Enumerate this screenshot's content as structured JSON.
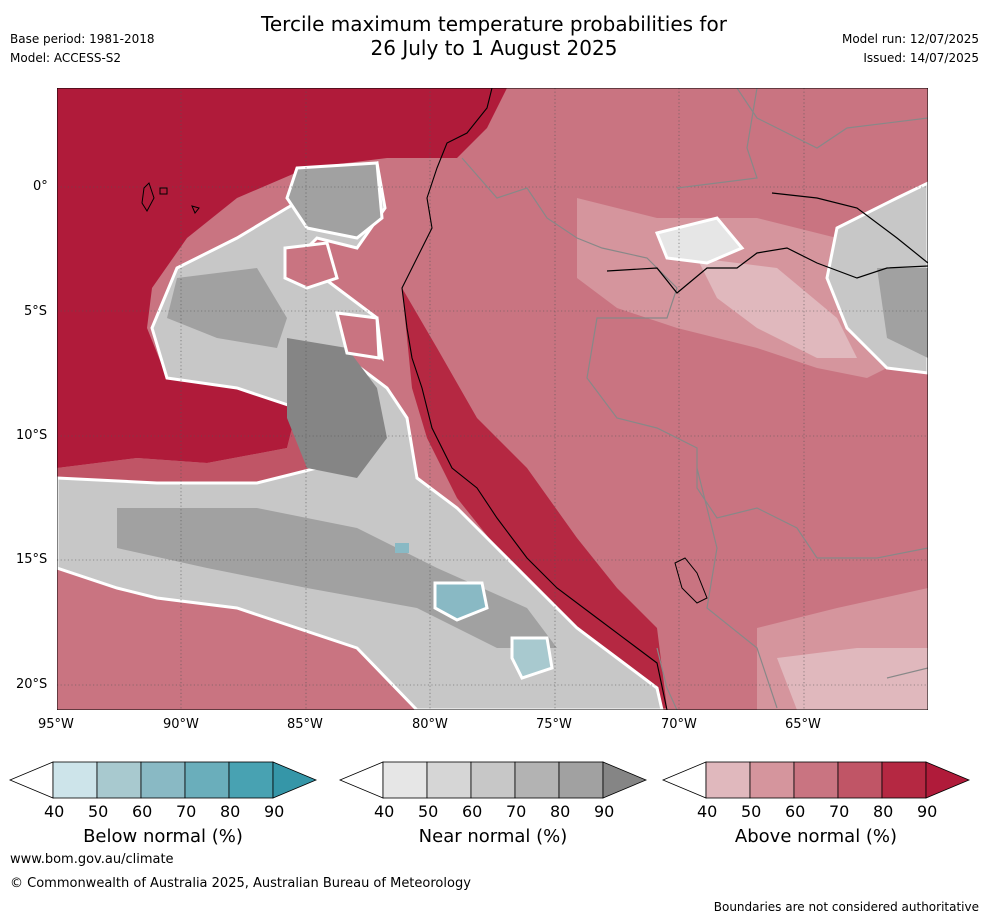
{
  "header": {
    "title_line1": "Tercile maximum temperature probabilities for",
    "title_line2": "26 July to 1 August 2025",
    "base_period": "Base period: 1981-2018",
    "model": "Model: ACCESS-S2",
    "model_run": "Model run: 12/07/2025",
    "issued": "Issued: 14/07/2025"
  },
  "map": {
    "lon_ticks": [
      "95°W",
      "90°W",
      "85°W",
      "80°W",
      "75°W",
      "70°W",
      "65°W"
    ],
    "lat_ticks": [
      "0°",
      "5°S",
      "10°S",
      "15°S",
      "20°S"
    ],
    "colors": {
      "above": [
        "#e0b8bd",
        "#d5959d",
        "#c97481",
        "#c05566",
        "#b52842",
        "#b01b3a"
      ],
      "near": [
        "#e6e6e6",
        "#d6d6d6",
        "#c7c7c7",
        "#b3b3b3",
        "#a1a1a1",
        "#858585"
      ],
      "below": [
        "#cde4ea",
        "#a8c9cf",
        "#89b9c4",
        "#6aaebb",
        "#48a2b2",
        "#3596a8"
      ]
    }
  },
  "legend": [
    {
      "label": "Below normal (%)",
      "ticks": [
        "40",
        "50",
        "60",
        "70",
        "80",
        "90"
      ],
      "colors": [
        "#cde4ea",
        "#a8c9cf",
        "#89b9c4",
        "#6aaebb",
        "#48a2b2",
        "#3596a8"
      ]
    },
    {
      "label": "Near normal (%)",
      "ticks": [
        "40",
        "50",
        "60",
        "70",
        "80",
        "90"
      ],
      "colors": [
        "#e6e6e6",
        "#d6d6d6",
        "#c7c7c7",
        "#b3b3b3",
        "#a1a1a1",
        "#858585"
      ]
    },
    {
      "label": "Above normal (%)",
      "ticks": [
        "40",
        "50",
        "60",
        "70",
        "80",
        "90"
      ],
      "colors": [
        "#e0b8bd",
        "#d5959d",
        "#c97481",
        "#c05566",
        "#b52842",
        "#b01b3a"
      ]
    }
  ],
  "footer": {
    "website": "www.bom.gov.au/climate",
    "copyright": "© Commonwealth of Australia 2025, Australian Bureau of Meteorology",
    "disclaimer": "Boundaries are not considered authoritative"
  }
}
